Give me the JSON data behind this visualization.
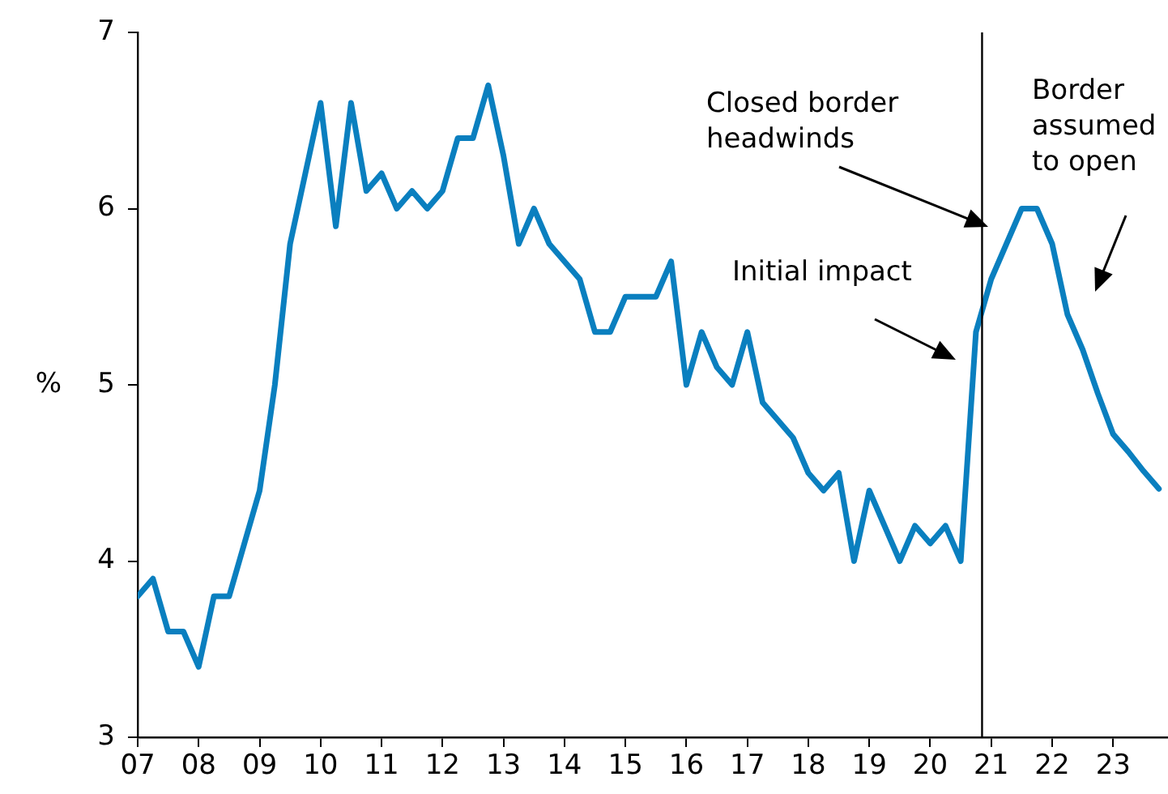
{
  "chart_data": {
    "type": "line",
    "ylabel": "%",
    "x": [
      2007,
      2007.25,
      2007.5,
      2007.75,
      2008,
      2008.25,
      2008.5,
      2008.75,
      2009,
      2009.25,
      2009.5,
      2009.75,
      2010,
      2010.25,
      2010.5,
      2010.75,
      2011,
      2011.25,
      2011.5,
      2011.75,
      2012,
      2012.25,
      2012.5,
      2012.75,
      2013,
      2013.25,
      2013.5,
      2013.75,
      2014,
      2014.25,
      2014.5,
      2014.75,
      2015,
      2015.25,
      2015.5,
      2015.75,
      2016,
      2016.25,
      2016.5,
      2016.75,
      2017,
      2017.25,
      2017.5,
      2017.75,
      2018,
      2018.25,
      2018.5,
      2018.75,
      2019,
      2019.25,
      2019.5,
      2019.75,
      2020,
      2020.25,
      2020.5,
      2020.75,
      2021,
      2021.25,
      2021.5,
      2021.75,
      2022,
      2022.25,
      2022.5,
      2022.75,
      2023,
      2023.25,
      2023.5,
      2023.75
    ],
    "series": [
      {
        "color": "#0a7fbf",
        "values": [
          3.8,
          3.9,
          3.6,
          3.6,
          3.4,
          3.8,
          3.8,
          4.1,
          4.4,
          5.0,
          5.8,
          6.2,
          6.6,
          5.9,
          6.6,
          6.1,
          6.2,
          6.0,
          6.1,
          6.0,
          6.1,
          6.4,
          6.4,
          6.7,
          6.3,
          5.8,
          6.0,
          5.8,
          5.7,
          5.6,
          5.3,
          5.3,
          5.5,
          5.5,
          5.5,
          5.7,
          5.0,
          5.3,
          5.1,
          5.0,
          5.3,
          4.9,
          4.8,
          4.7,
          4.5,
          4.4,
          4.5,
          4.0,
          4.4,
          4.2,
          4.0,
          4.2,
          4.1,
          4.2,
          4.0,
          5.3,
          5.6,
          5.8,
          6.0,
          6.0,
          5.8,
          5.4,
          5.2,
          4.95,
          4.72,
          4.62,
          4.51,
          4.41
        ]
      }
    ],
    "xlim": [
      2007,
      2023.9
    ],
    "xticks": [
      {
        "value": 2007,
        "label": "07"
      },
      {
        "value": 2008,
        "label": "08"
      },
      {
        "value": 2009,
        "label": "09"
      },
      {
        "value": 2010,
        "label": "10"
      },
      {
        "value": 2011,
        "label": "11"
      },
      {
        "value": 2012,
        "label": "12"
      },
      {
        "value": 2013,
        "label": "13"
      },
      {
        "value": 2014,
        "label": "14"
      },
      {
        "value": 2015,
        "label": "15"
      },
      {
        "value": 2016,
        "label": "16"
      },
      {
        "value": 2017,
        "label": "17"
      },
      {
        "value": 2018,
        "label": "18"
      },
      {
        "value": 2019,
        "label": "19"
      },
      {
        "value": 2020,
        "label": "20"
      },
      {
        "value": 2021,
        "label": "21"
      },
      {
        "value": 2022,
        "label": "22"
      },
      {
        "value": 2023,
        "label": "23"
      }
    ],
    "ylim": [
      3,
      7
    ],
    "yticks": [
      3,
      4,
      5,
      6,
      7
    ],
    "ref_lines": [
      {
        "axis": "x",
        "value": 2020.85,
        "color": "#000000"
      }
    ],
    "annotations": [
      "Closed border\nheadwinds",
      "Initial impact",
      "Border\nassumed\nto open"
    ],
    "legend": false
  }
}
